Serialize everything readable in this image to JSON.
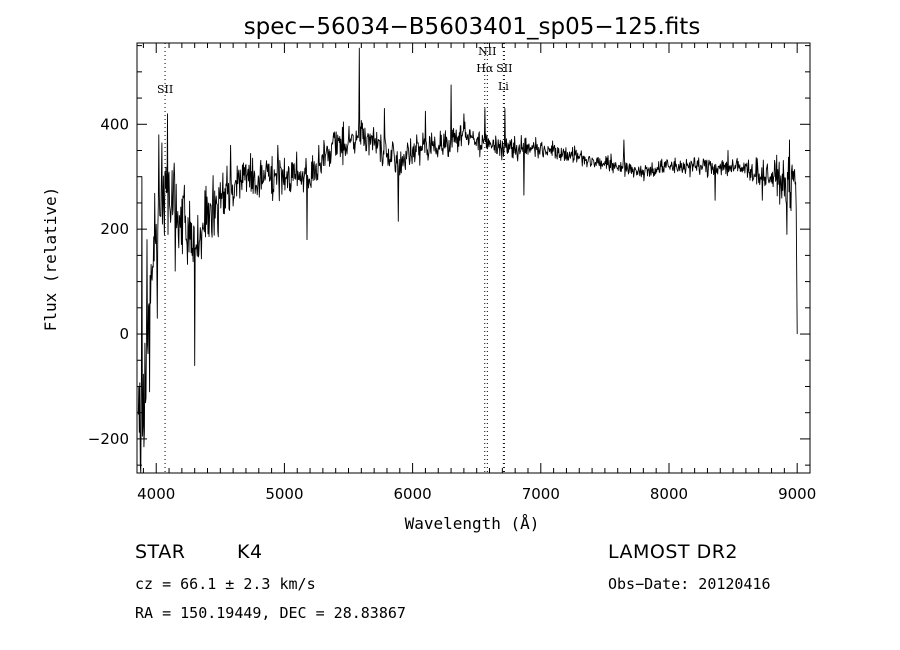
{
  "chart_data": {
    "type": "line",
    "title": "spec−56034−B5603401_sp05−125.fits",
    "xlabel": "Wavelength (Å)",
    "ylabel": "Flux (relative)",
    "xlim": [
      3850,
      9100
    ],
    "ylim": [
      -265,
      555
    ],
    "xticks": [
      4000,
      5000,
      6000,
      7000,
      8000,
      9000
    ],
    "yticks": [
      -200,
      0,
      200,
      400
    ],
    "ytick_labels": [
      "−200",
      "0",
      "200",
      "400"
    ],
    "line_markers": [
      {
        "label": "SII",
        "x": 4069,
        "label_y": 460
      },
      {
        "label": "NII",
        "x": 6583,
        "label_y": 532
      },
      {
        "label": "Hα",
        "x": 6563,
        "label_y": 500
      },
      {
        "label": "SII",
        "x": 6716,
        "label_y": 500
      },
      {
        "label": "Li",
        "x": 6708,
        "label_y": 465
      }
    ],
    "series": [
      {
        "anchors_x": [
          3860,
          3880,
          3900,
          3920,
          3950,
          4000,
          4050,
          4100,
          4150,
          4200,
          4300,
          4400,
          4500,
          4600,
          4700,
          4800,
          4900,
          5000,
          5100,
          5200,
          5300,
          5400,
          5500,
          5600,
          5700,
          5800,
          5900,
          6000,
          6100,
          6200,
          6300,
          6400,
          6500,
          6600,
          6700,
          6800,
          6900,
          7000,
          7200,
          7400,
          7600,
          7800,
          8000,
          8200,
          8400,
          8600,
          8800,
          8900,
          8950,
          8990,
          9000
        ],
        "anchors_y": [
          -60,
          -200,
          -120,
          -50,
          80,
          180,
          250,
          270,
          240,
          200,
          170,
          220,
          250,
          290,
          300,
          295,
          300,
          300,
          310,
          300,
          330,
          360,
          370,
          380,
          370,
          340,
          330,
          345,
          355,
          360,
          370,
          380,
          370,
          360,
          360,
          355,
          355,
          355,
          345,
          330,
          320,
          310,
          320,
          320,
          320,
          315,
          300,
          290,
          280,
          300,
          0
        ],
        "noise_x": [
          3850,
          4000,
          4200,
          4400,
          4600,
          5000,
          5600,
          6200,
          6800,
          7200,
          8000,
          8600,
          8900,
          9000
        ],
        "noise_amp": [
          110,
          100,
          70,
          50,
          38,
          32,
          28,
          24,
          20,
          14,
          14,
          18,
          32,
          40
        ],
        "spikes": [
          {
            "x": 3875,
            "y": -250
          },
          {
            "x": 3890,
            "y": 300
          },
          {
            "x": 3905,
            "y": -215
          },
          {
            "x": 3930,
            "y": 180
          },
          {
            "x": 3950,
            "y": -110
          },
          {
            "x": 4010,
            "y": 30
          },
          {
            "x": 4020,
            "y": 380
          },
          {
            "x": 4090,
            "y": 420
          },
          {
            "x": 4150,
            "y": 120
          },
          {
            "x": 4300,
            "y": -60
          },
          {
            "x": 4350,
            "y": 190
          },
          {
            "x": 4580,
            "y": 360
          },
          {
            "x": 4950,
            "y": 360
          },
          {
            "x": 5175,
            "y": 180
          },
          {
            "x": 5270,
            "y": 360
          },
          {
            "x": 5585,
            "y": 545
          },
          {
            "x": 5780,
            "y": 430
          },
          {
            "x": 5890,
            "y": 215
          },
          {
            "x": 6100,
            "y": 425
          },
          {
            "x": 6300,
            "y": 475
          },
          {
            "x": 6400,
            "y": 420
          },
          {
            "x": 6565,
            "y": 430
          },
          {
            "x": 6720,
            "y": 430
          },
          {
            "x": 6870,
            "y": 265
          },
          {
            "x": 7650,
            "y": 370
          },
          {
            "x": 8360,
            "y": 415
          },
          {
            "x": 8360,
            "y": 255
          },
          {
            "x": 8460,
            "y": 350
          },
          {
            "x": 8730,
            "y": 255
          },
          {
            "x": 8920,
            "y": 190
          },
          {
            "x": 8940,
            "y": 370
          },
          {
            "x": 8970,
            "y": 310
          }
        ]
      }
    ]
  },
  "info": {
    "object_class": "STAR",
    "subclass": "K4",
    "cz": "cz = 66.1 ± 2.3 km/s",
    "coords": "RA = 150.19449, DEC =  28.83867",
    "survey": "LAMOST DR2",
    "obs_date": "Obs−Date: 20120416"
  }
}
